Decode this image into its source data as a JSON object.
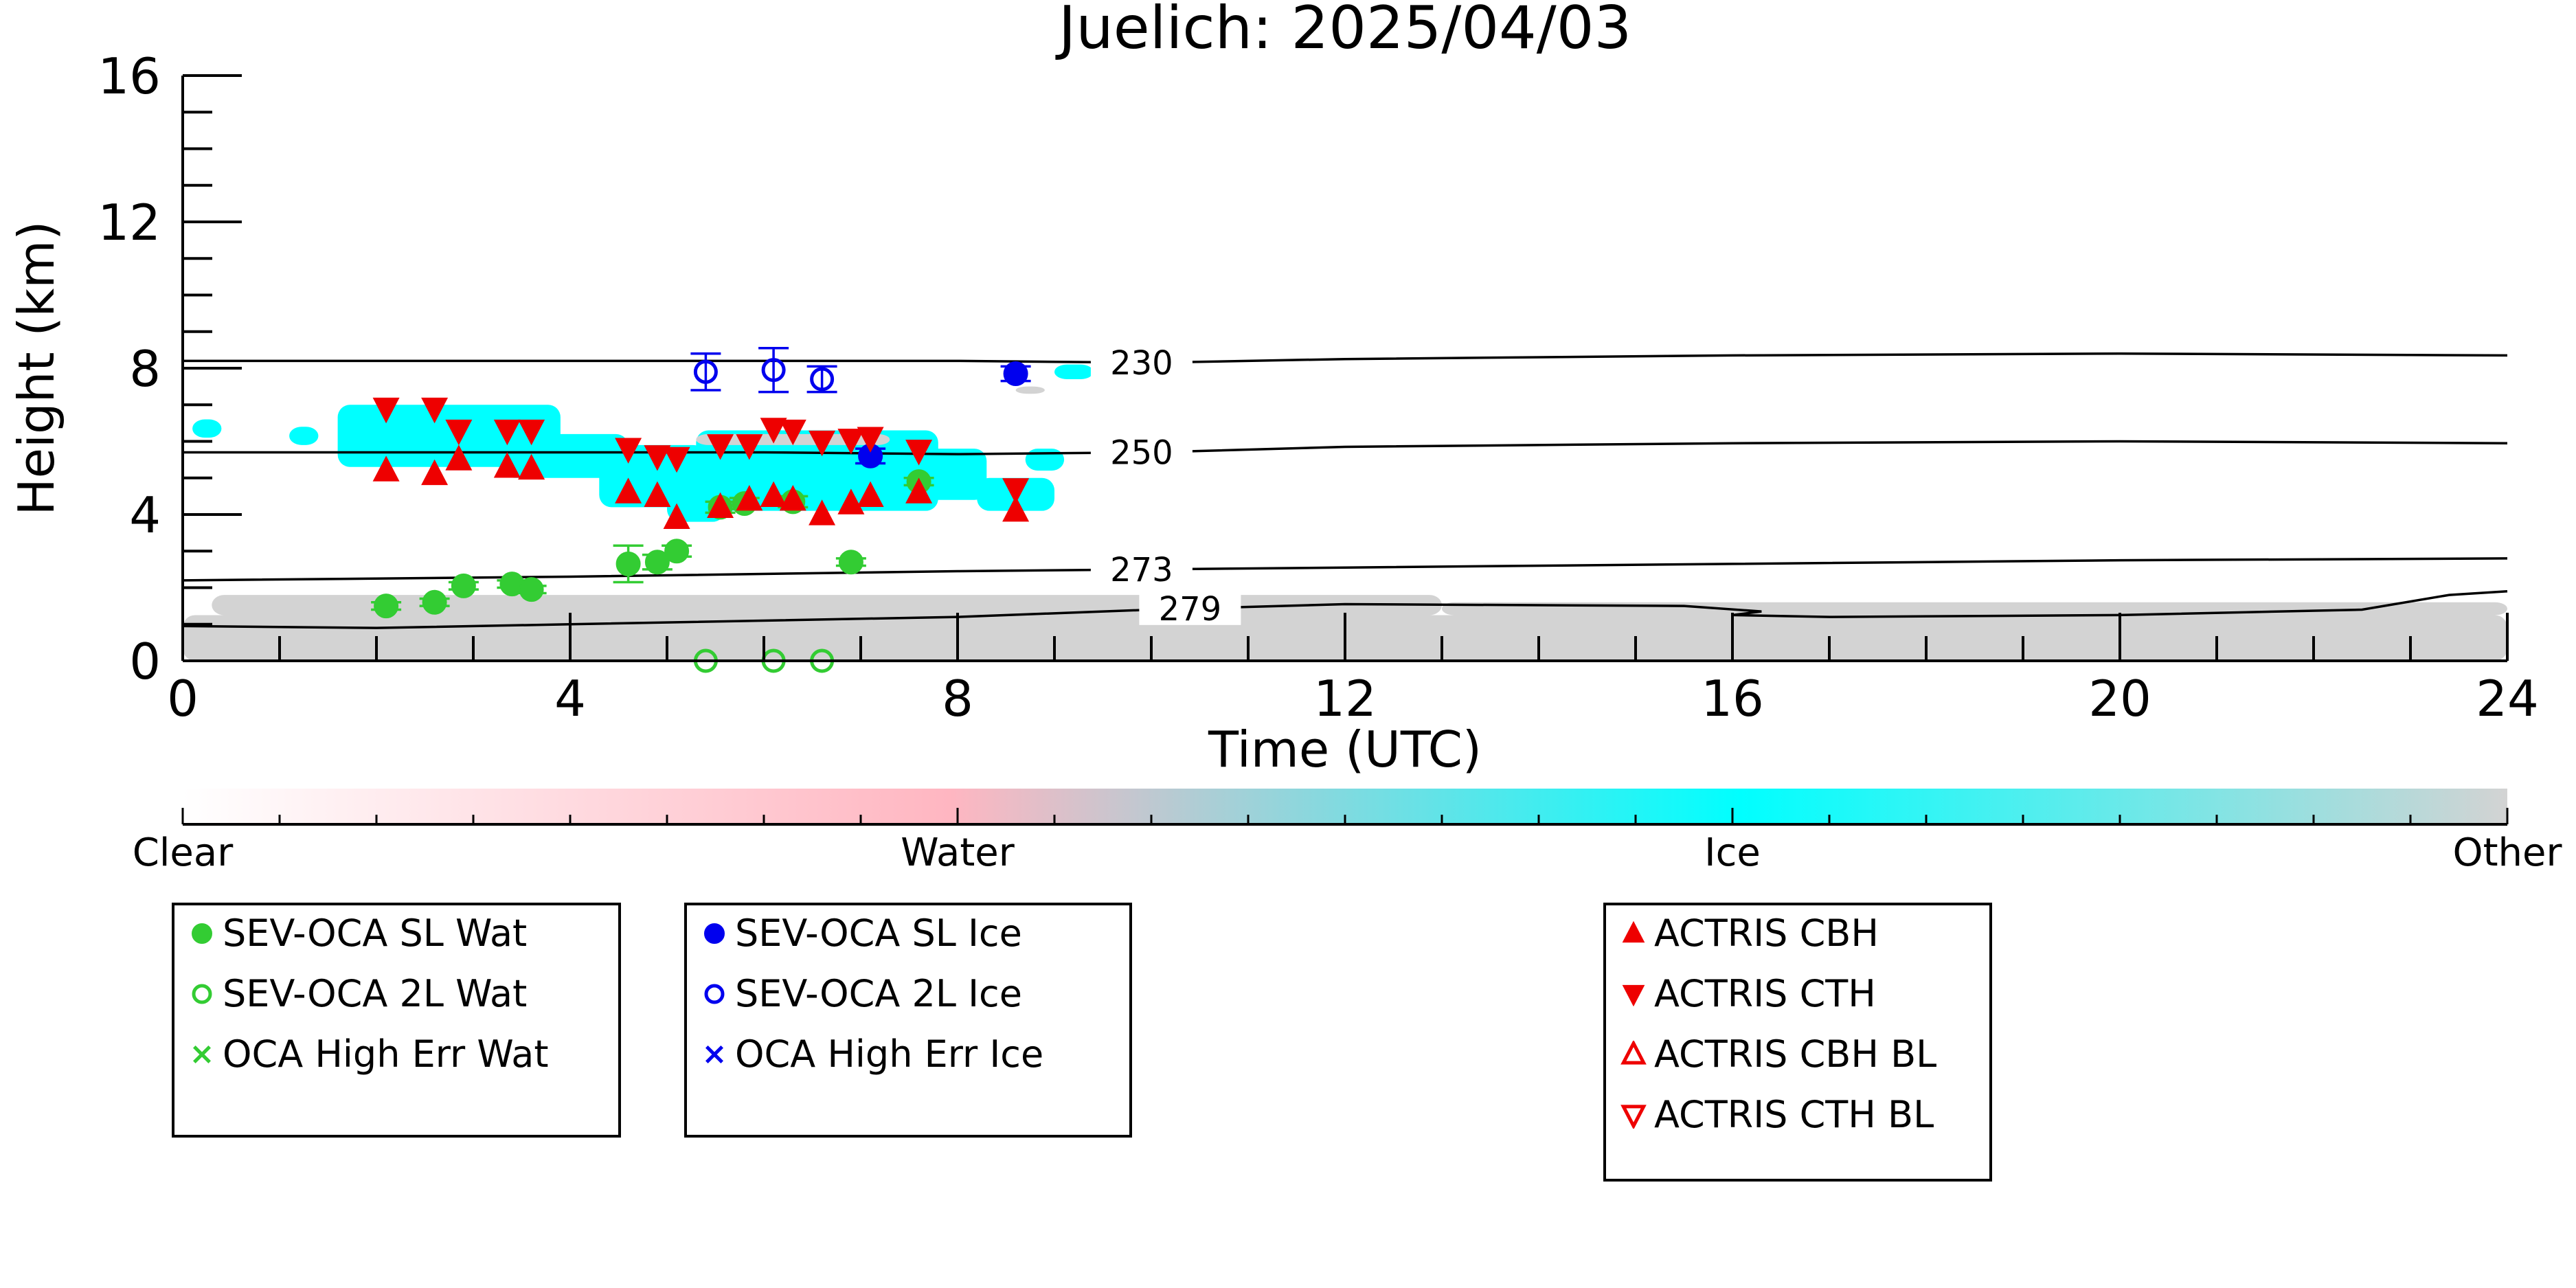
{
  "chart_data": {
    "type": "scatter",
    "title": "Juelich: 2025/04/03",
    "xlabel": "Time (UTC)",
    "ylabel": "Height (km)",
    "xlim": [
      0,
      24
    ],
    "ylim": [
      0,
      16
    ],
    "xticks": [
      0,
      4,
      8,
      12,
      16,
      20,
      24
    ],
    "yticks": [
      0,
      4,
      8,
      12,
      16
    ],
    "xtick_labels": [
      "0",
      "4",
      "8",
      "12",
      "16",
      "20",
      "24"
    ],
    "ytick_labels": [
      "0",
      "4",
      "8",
      "12",
      "16"
    ],
    "grid": false,
    "colors": {
      "sl_wat": "#33cc33",
      "sl_ice": "#0000ee",
      "actris": "#ee0000",
      "ice": "#00ffff",
      "other": "#d3d3d3",
      "water": "#ffb6c1"
    },
    "contours": [
      {
        "label": "230",
        "label_x": 9.9,
        "points": [
          [
            0,
            8.2
          ],
          [
            6,
            8.2
          ],
          [
            8,
            8.2
          ],
          [
            10,
            8.15
          ],
          [
            12,
            8.25
          ],
          [
            16,
            8.35
          ],
          [
            20,
            8.4
          ],
          [
            24,
            8.35
          ]
        ]
      },
      {
        "label": "250",
        "label_x": 9.9,
        "points": [
          [
            0,
            5.7
          ],
          [
            6,
            5.7
          ],
          [
            8,
            5.65
          ],
          [
            10,
            5.7
          ],
          [
            12,
            5.85
          ],
          [
            16,
            5.95
          ],
          [
            20,
            6.0
          ],
          [
            24,
            5.95
          ]
        ]
      },
      {
        "label": "273",
        "label_x": 9.9,
        "points": [
          [
            0,
            2.2
          ],
          [
            4,
            2.3
          ],
          [
            8,
            2.45
          ],
          [
            10,
            2.5
          ],
          [
            12,
            2.55
          ],
          [
            16,
            2.65
          ],
          [
            20,
            2.75
          ],
          [
            24,
            2.8
          ]
        ]
      },
      {
        "label": "279",
        "label_x": 10.4,
        "points": [
          [
            0,
            0.95
          ],
          [
            2,
            0.9
          ],
          [
            4,
            1.0
          ],
          [
            8,
            1.2
          ],
          [
            10,
            1.4
          ],
          [
            12,
            1.55
          ],
          [
            15.5,
            1.5
          ],
          [
            16.3,
            1.35
          ],
          [
            16.0,
            1.25
          ],
          [
            17,
            1.2
          ],
          [
            20,
            1.25
          ],
          [
            22.5,
            1.4
          ],
          [
            23.4,
            1.8
          ],
          [
            24,
            1.9
          ]
        ]
      }
    ],
    "legend": {
      "placement": "below",
      "boxes": [
        {
          "entries": [
            {
              "label": "SEV-OCA SL Wat",
              "symbol": "circle-filled",
              "color": "#33cc33"
            },
            {
              "label": "SEV-OCA 2L Wat",
              "symbol": "circle-open",
              "color": "#33cc33"
            },
            {
              "label": "OCA High Err Wat",
              "symbol": "cross",
              "color": "#33cc33"
            }
          ]
        },
        {
          "entries": [
            {
              "label": "SEV-OCA SL Ice",
              "symbol": "circle-filled",
              "color": "#0000ee"
            },
            {
              "label": "SEV-OCA 2L Ice",
              "symbol": "circle-open",
              "color": "#0000ee"
            },
            {
              "label": "OCA High Err Ice",
              "symbol": "cross",
              "color": "#0000ee"
            }
          ]
        },
        {
          "entries": [
            {
              "label": "ACTRIS CBH",
              "symbol": "triangle-up-filled",
              "color": "#ee0000"
            },
            {
              "label": "ACTRIS CTH",
              "symbol": "triangle-down-filled",
              "color": "#ee0000"
            },
            {
              "label": "ACTRIS CBH BL",
              "symbol": "triangle-up-open",
              "color": "#ee0000"
            },
            {
              "label": "ACTRIS CTH BL",
              "symbol": "triangle-down-open",
              "color": "#ee0000"
            }
          ]
        }
      ]
    },
    "colorbar": {
      "labels": [
        "Clear",
        "Water",
        "Ice",
        "Other"
      ],
      "stops": [
        {
          "at": 0.0,
          "color": "#ffffff"
        },
        {
          "at": 0.33,
          "color": "#ffb6c1"
        },
        {
          "at": 0.67,
          "color": "#00ffff"
        },
        {
          "at": 1.0,
          "color": "#d3d3d3"
        }
      ]
    },
    "series": [
      {
        "name": "SEV-OCA SL Wat",
        "symbol": "circle-filled",
        "color": "#33cc33",
        "points": [
          {
            "x": 2.1,
            "y": 1.5,
            "err": 0.1
          },
          {
            "x": 2.6,
            "y": 1.6,
            "err": 0.1
          },
          {
            "x": 2.9,
            "y": 2.05,
            "err": 0.1
          },
          {
            "x": 3.4,
            "y": 2.1,
            "err": 0.1
          },
          {
            "x": 3.6,
            "y": 1.95,
            "err": 0.1
          },
          {
            "x": 4.6,
            "y": 2.65,
            "err": 0.5
          },
          {
            "x": 4.9,
            "y": 2.7,
            "err": 0.2
          },
          {
            "x": 5.1,
            "y": 3.0,
            "err": 0.15
          },
          {
            "x": 5.55,
            "y": 4.2,
            "err": 0.15
          },
          {
            "x": 5.8,
            "y": 4.3,
            "err": 0.15
          },
          {
            "x": 6.3,
            "y": 4.35,
            "err": 0.15
          },
          {
            "x": 6.9,
            "y": 2.7,
            "err": 0.1
          },
          {
            "x": 7.6,
            "y": 4.9,
            "err": 0.1
          }
        ]
      },
      {
        "name": "SEV-OCA 2L Wat",
        "symbol": "circle-open",
        "color": "#33cc33",
        "points": [
          {
            "x": 5.4,
            "y": 0.0
          },
          {
            "x": 6.1,
            "y": 0.0
          },
          {
            "x": 6.6,
            "y": 0.0
          }
        ]
      },
      {
        "name": "SEV-OCA SL Ice",
        "symbol": "circle-filled",
        "color": "#0000ee",
        "points": [
          {
            "x": 7.1,
            "y": 5.6,
            "err": 0.2
          },
          {
            "x": 8.6,
            "y": 7.85,
            "err": 0.2
          }
        ]
      },
      {
        "name": "SEV-OCA 2L Ice",
        "symbol": "circle-open",
        "color": "#0000ee",
        "points": [
          {
            "x": 5.4,
            "y": 7.9,
            "err": 0.5
          },
          {
            "x": 6.1,
            "y": 7.95,
            "err": 0.6
          },
          {
            "x": 6.6,
            "y": 7.7,
            "err": 0.35
          }
        ]
      },
      {
        "name": "ACTRIS CBH",
        "symbol": "triangle-up-filled",
        "color": "#ee0000",
        "points": [
          {
            "x": 2.1,
            "y": 5.2
          },
          {
            "x": 2.6,
            "y": 5.1
          },
          {
            "x": 2.85,
            "y": 5.5
          },
          {
            "x": 3.35,
            "y": 5.3
          },
          {
            "x": 3.6,
            "y": 5.25
          },
          {
            "x": 4.6,
            "y": 4.6
          },
          {
            "x": 4.9,
            "y": 4.5
          },
          {
            "x": 5.1,
            "y": 3.9
          },
          {
            "x": 5.55,
            "y": 4.2
          },
          {
            "x": 5.85,
            "y": 4.4
          },
          {
            "x": 6.1,
            "y": 4.5
          },
          {
            "x": 6.3,
            "y": 4.4
          },
          {
            "x": 6.6,
            "y": 4.0
          },
          {
            "x": 6.9,
            "y": 4.3
          },
          {
            "x": 7.1,
            "y": 4.5
          },
          {
            "x": 7.6,
            "y": 4.6
          },
          {
            "x": 8.6,
            "y": 4.1
          }
        ]
      },
      {
        "name": "ACTRIS CTH",
        "symbol": "triangle-down-filled",
        "color": "#ee0000",
        "points": [
          {
            "x": 2.1,
            "y": 6.9
          },
          {
            "x": 2.6,
            "y": 6.9
          },
          {
            "x": 2.85,
            "y": 6.3
          },
          {
            "x": 3.35,
            "y": 6.3
          },
          {
            "x": 3.6,
            "y": 6.3
          },
          {
            "x": 4.6,
            "y": 5.8
          },
          {
            "x": 4.9,
            "y": 5.6
          },
          {
            "x": 5.1,
            "y": 5.55
          },
          {
            "x": 5.55,
            "y": 5.9
          },
          {
            "x": 5.85,
            "y": 5.9
          },
          {
            "x": 6.1,
            "y": 6.35
          },
          {
            "x": 6.3,
            "y": 6.3
          },
          {
            "x": 6.6,
            "y": 6.0
          },
          {
            "x": 6.9,
            "y": 6.05
          },
          {
            "x": 7.1,
            "y": 6.1
          },
          {
            "x": 7.6,
            "y": 5.75
          },
          {
            "x": 8.6,
            "y": 4.7
          }
        ]
      }
    ],
    "regions": [
      {
        "class": "ice",
        "x0": 0.1,
        "x1": 0.4,
        "y0": 6.1,
        "y1": 6.6
      },
      {
        "class": "ice",
        "x0": 1.1,
        "x1": 1.4,
        "y0": 5.9,
        "y1": 6.4
      },
      {
        "class": "ice",
        "x0": 1.6,
        "x1": 3.9,
        "y0": 5.3,
        "y1": 7.0
      },
      {
        "class": "ice",
        "x0": 3.3,
        "x1": 4.6,
        "y0": 5.0,
        "y1": 6.2
      },
      {
        "class": "ice",
        "x0": 4.3,
        "x1": 5.4,
        "y0": 4.2,
        "y1": 5.9
      },
      {
        "class": "ice",
        "x0": 5.0,
        "x1": 5.6,
        "y0": 3.8,
        "y1": 4.8
      },
      {
        "class": "ice",
        "x0": 5.3,
        "x1": 7.8,
        "y0": 4.1,
        "y1": 6.3
      },
      {
        "class": "ice",
        "x0": 7.3,
        "x1": 8.3,
        "y0": 4.4,
        "y1": 5.8
      },
      {
        "class": "ice",
        "x0": 8.2,
        "x1": 9.0,
        "y0": 4.1,
        "y1": 5.0
      },
      {
        "class": "ice",
        "x0": 8.7,
        "x1": 9.1,
        "y0": 5.2,
        "y1": 5.8
      },
      {
        "class": "ice",
        "x0": 9.0,
        "x1": 9.4,
        "y0": 7.7,
        "y1": 8.1
      },
      {
        "class": "ice",
        "x0": 9.4,
        "x1": 9.8,
        "y0": 7.75,
        "y1": 8.0
      },
      {
        "class": "other",
        "x0": 0.0,
        "x1": 24.0,
        "y0": 0.0,
        "y1": 1.25
      },
      {
        "class": "other",
        "x0": 0.3,
        "x1": 13.0,
        "y0": 1.25,
        "y1": 1.8
      },
      {
        "class": "other",
        "x0": 13.0,
        "x1": 24.0,
        "y0": 1.25,
        "y1": 1.6
      },
      {
        "class": "other",
        "x0": 5.3,
        "x1": 7.3,
        "y0": 5.9,
        "y1": 6.2
      },
      {
        "class": "other",
        "x0": 8.6,
        "x1": 8.9,
        "y0": 7.3,
        "y1": 7.5
      }
    ]
  }
}
